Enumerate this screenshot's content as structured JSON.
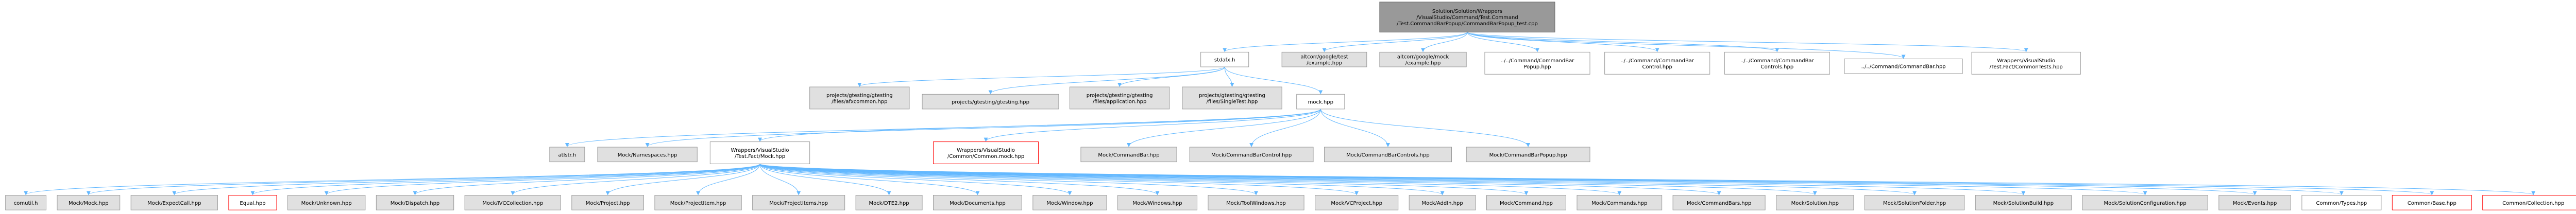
{
  "colors": {
    "edge": "#63b8ff",
    "node_border": "#999999",
    "node_fill_gray": "#e0e0e0",
    "node_fill_white": "#ffffff",
    "root_fill": "#999999",
    "root_border": "#666666",
    "missing_border": "#ff0000",
    "text": "#000000"
  },
  "nodes": [
    {
      "id": "root",
      "lines": [
        "Solution/Solution/Wrappers",
        "/VisualStudio/Command/Test.Command",
        "/Test.CommandBarPopup/CommandBarPopup_test.cpp"
      ],
      "style": "root"
    },
    {
      "id": "stdafx",
      "lines": [
        "stdafx.h"
      ],
      "style": "white"
    },
    {
      "id": "gtest_example",
      "lines": [
        "altcorr/google/test",
        "/example.hpp"
      ],
      "style": "gray"
    },
    {
      "id": "gmock_example",
      "lines": [
        "altcorr/google/mock",
        "/example.hpp"
      ],
      "style": "gray"
    },
    {
      "id": "cbpopup",
      "lines": [
        "../../Command/CommandBar",
        "Popup.hpp"
      ],
      "style": "white"
    },
    {
      "id": "cbcontrol",
      "lines": [
        "../../Command/CommandBar",
        "Control.hpp"
      ],
      "style": "white"
    },
    {
      "id": "cbcontrols",
      "lines": [
        "../../Command/CommandBar",
        "Controls.hpp"
      ],
      "style": "white"
    },
    {
      "id": "cbar",
      "lines": [
        "../../Command/CommandBar.hpp"
      ],
      "style": "white"
    },
    {
      "id": "commontests",
      "lines": [
        "Wrappers/VisualStudio",
        "/Test.Fact/CommonTests.hpp"
      ],
      "style": "white"
    },
    {
      "id": "gtest_afxcommon",
      "lines": [
        "projects/gtesting/gtesting",
        "/files/afxcommon.hpp"
      ],
      "style": "gray"
    },
    {
      "id": "gtesting",
      "lines": [
        "projects/gtesting/gtesting.hpp"
      ],
      "style": "gray"
    },
    {
      "id": "gtest_app",
      "lines": [
        "projects/gtesting/gtesting",
        "/files/application.hpp"
      ],
      "style": "gray"
    },
    {
      "id": "gtest_single",
      "lines": [
        "projects/gtesting/gtesting",
        "/files/SingleTest.hpp"
      ],
      "style": "gray"
    },
    {
      "id": "mock",
      "lines": [
        "mock.hpp"
      ],
      "style": "white"
    },
    {
      "id": "atlstr",
      "lines": [
        "atlstr.h"
      ],
      "style": "gray"
    },
    {
      "id": "mock_ns",
      "lines": [
        "Mock/Namespaces.hpp"
      ],
      "style": "gray"
    },
    {
      "id": "factmock",
      "lines": [
        "Wrappers/VisualStudio",
        "/Test.Fact/Mock.hpp"
      ],
      "style": "white"
    },
    {
      "id": "common_mock",
      "lines": [
        "Wrappers/VisualStudio",
        "/Common/Common.mock.hpp"
      ],
      "style": "missing"
    },
    {
      "id": "mock_cbar",
      "lines": [
        "Mock/CommandBar.hpp"
      ],
      "style": "gray"
    },
    {
      "id": "mock_cbcontrol",
      "lines": [
        "Mock/CommandBarControl.hpp"
      ],
      "style": "gray"
    },
    {
      "id": "mock_cbcontrols",
      "lines": [
        "Mock/CommandBarControls.hpp"
      ],
      "style": "gray"
    },
    {
      "id": "mock_cbpopup",
      "lines": [
        "Mock/CommandBarPopup.hpp"
      ],
      "style": "gray"
    },
    {
      "id": "comutil",
      "lines": [
        "comutil.h"
      ],
      "style": "gray"
    },
    {
      "id": "m_mock",
      "lines": [
        "Mock/Mock.hpp"
      ],
      "style": "gray"
    },
    {
      "id": "m_expect",
      "lines": [
        "Mock/ExpectCall.hpp"
      ],
      "style": "gray"
    },
    {
      "id": "equal",
      "lines": [
        "Equal.hpp"
      ],
      "style": "missing"
    },
    {
      "id": "m_unknown",
      "lines": [
        "Mock/Unknown.hpp"
      ],
      "style": "gray"
    },
    {
      "id": "m_dispatch",
      "lines": [
        "Mock/Dispatch.hpp"
      ],
      "style": "gray"
    },
    {
      "id": "m_vcc",
      "lines": [
        "Mock/IVCCollection.hpp"
      ],
      "style": "gray"
    },
    {
      "id": "m_project",
      "lines": [
        "Mock/Project.hpp"
      ],
      "style": "gray"
    },
    {
      "id": "m_projitem",
      "lines": [
        "Mock/ProjectItem.hpp"
      ],
      "style": "gray"
    },
    {
      "id": "m_projitems",
      "lines": [
        "Mock/ProjectItems.hpp"
      ],
      "style": "gray"
    },
    {
      "id": "m_dte2",
      "lines": [
        "Mock/DTE2.hpp"
      ],
      "style": "gray"
    },
    {
      "id": "m_docs",
      "lines": [
        "Mock/Documents.hpp"
      ],
      "style": "gray"
    },
    {
      "id": "m_window",
      "lines": [
        "Mock/Window.hpp"
      ],
      "style": "gray"
    },
    {
      "id": "m_windows",
      "lines": [
        "Mock/Windows.hpp"
      ],
      "style": "gray"
    },
    {
      "id": "m_toolwin",
      "lines": [
        "Mock/ToolWindows.hpp"
      ],
      "style": "gray"
    },
    {
      "id": "m_vcproj",
      "lines": [
        "Mock/VCProject.hpp"
      ],
      "style": "gray"
    },
    {
      "id": "m_addin",
      "lines": [
        "Mock/AddIn.hpp"
      ],
      "style": "gray"
    },
    {
      "id": "m_command",
      "lines": [
        "Mock/Command.hpp"
      ],
      "style": "gray"
    },
    {
      "id": "m_commands",
      "lines": [
        "Mock/Commands.hpp"
      ],
      "style": "gray"
    },
    {
      "id": "m_cbars",
      "lines": [
        "Mock/CommandBars.hpp"
      ],
      "style": "gray"
    },
    {
      "id": "m_solution",
      "lines": [
        "Mock/Solution.hpp"
      ],
      "style": "gray"
    },
    {
      "id": "m_solfolder",
      "lines": [
        "Mock/SolutionFolder.hpp"
      ],
      "style": "gray"
    },
    {
      "id": "m_solbuild",
      "lines": [
        "Mock/SolutionBuild.hpp"
      ],
      "style": "gray"
    },
    {
      "id": "m_solcfg",
      "lines": [
        "Mock/SolutionConfiguration.hpp"
      ],
      "style": "gray"
    },
    {
      "id": "m_events",
      "lines": [
        "Mock/Events.hpp"
      ],
      "style": "gray"
    },
    {
      "id": "c_types",
      "lines": [
        "Common/Types.hpp"
      ],
      "style": "white"
    },
    {
      "id": "c_base",
      "lines": [
        "Common/Base.hpp"
      ],
      "style": "missing"
    },
    {
      "id": "c_coll",
      "lines": [
        "Common/Collection.hpp"
      ],
      "style": "missing"
    }
  ],
  "edges": [
    [
      "root",
      "stdafx"
    ],
    [
      "root",
      "gtest_example"
    ],
    [
      "root",
      "gmock_example"
    ],
    [
      "root",
      "cbpopup"
    ],
    [
      "root",
      "cbcontrol"
    ],
    [
      "root",
      "cbcontrols"
    ],
    [
      "root",
      "cbar"
    ],
    [
      "root",
      "commontests"
    ],
    [
      "stdafx",
      "gtest_afxcommon"
    ],
    [
      "stdafx",
      "gtesting"
    ],
    [
      "stdafx",
      "gtest_app"
    ],
    [
      "stdafx",
      "gtest_single"
    ],
    [
      "stdafx",
      "mock"
    ],
    [
      "mock",
      "atlstr"
    ],
    [
      "mock",
      "mock_ns"
    ],
    [
      "mock",
      "factmock"
    ],
    [
      "mock",
      "common_mock"
    ],
    [
      "mock",
      "mock_cbar"
    ],
    [
      "mock",
      "mock_cbcontrol"
    ],
    [
      "mock",
      "mock_cbcontrols"
    ],
    [
      "mock",
      "mock_cbpopup"
    ],
    [
      "factmock",
      "comutil"
    ],
    [
      "factmock",
      "m_mock"
    ],
    [
      "factmock",
      "m_expect"
    ],
    [
      "factmock",
      "equal"
    ],
    [
      "factmock",
      "m_unknown"
    ],
    [
      "factmock",
      "m_dispatch"
    ],
    [
      "factmock",
      "m_vcc"
    ],
    [
      "factmock",
      "m_project"
    ],
    [
      "factmock",
      "m_projitem"
    ],
    [
      "factmock",
      "m_projitems"
    ],
    [
      "factmock",
      "m_dte2"
    ],
    [
      "factmock",
      "m_docs"
    ],
    [
      "factmock",
      "m_window"
    ],
    [
      "factmock",
      "m_windows"
    ],
    [
      "factmock",
      "m_toolwin"
    ],
    [
      "factmock",
      "m_vcproj"
    ],
    [
      "factmock",
      "m_addin"
    ],
    [
      "factmock",
      "m_command"
    ],
    [
      "factmock",
      "m_commands"
    ],
    [
      "factmock",
      "m_cbars"
    ],
    [
      "factmock",
      "m_solution"
    ],
    [
      "factmock",
      "m_solfolder"
    ],
    [
      "factmock",
      "m_solbuild"
    ],
    [
      "factmock",
      "m_solcfg"
    ],
    [
      "factmock",
      "m_events"
    ],
    [
      "factmock",
      "c_types"
    ],
    [
      "factmock",
      "c_base"
    ],
    [
      "factmock",
      "c_coll"
    ]
  ]
}
